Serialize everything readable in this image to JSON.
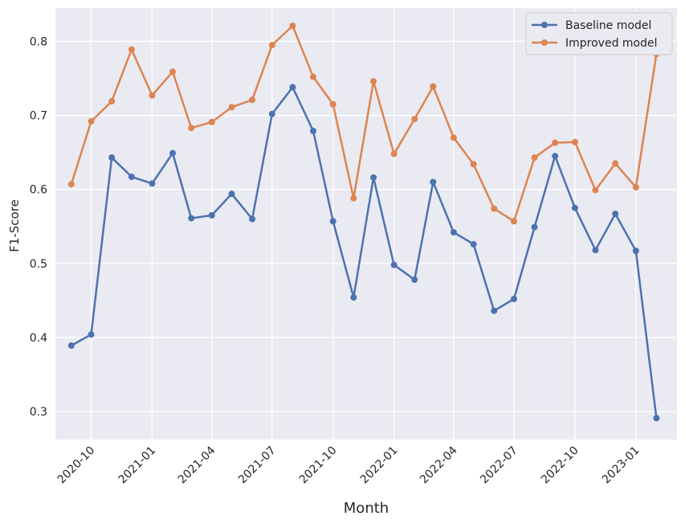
{
  "chart_data": {
    "type": "line",
    "xlabel": "Month",
    "ylabel": "F1-Score",
    "xlim": [
      "2020-08-08",
      "2023-03-04"
    ],
    "ylim": [
      0.262,
      0.845
    ],
    "x_ticks": [
      "2020-10",
      "2021-01",
      "2021-04",
      "2021-07",
      "2021-10",
      "2022-01",
      "2022-04",
      "2022-07",
      "2022-10",
      "2023-01"
    ],
    "y_ticks": [
      0.3,
      0.4,
      0.5,
      0.6,
      0.7,
      0.8
    ],
    "grid": true,
    "legend_position": "top-right",
    "x": [
      "2020-09",
      "2020-10",
      "2020-11",
      "2020-12",
      "2021-01",
      "2021-02",
      "2021-03",
      "2021-04",
      "2021-05",
      "2021-06",
      "2021-07",
      "2021-08",
      "2021-09",
      "2021-10",
      "2021-11",
      "2021-12",
      "2022-01",
      "2022-02",
      "2022-03",
      "2022-04",
      "2022-05",
      "2022-06",
      "2022-07",
      "2022-08",
      "2022-09",
      "2022-10",
      "2022-11",
      "2022-12",
      "2023-01",
      "2023-02"
    ],
    "series": [
      {
        "name": "Baseline model",
        "color": "#4c72b0",
        "values": [
          0.389,
          0.404,
          0.643,
          0.617,
          0.608,
          0.649,
          0.561,
          0.565,
          0.594,
          0.56,
          0.702,
          0.738,
          0.679,
          0.557,
          0.454,
          0.616,
          0.498,
          0.478,
          0.61,
          0.542,
          0.526,
          0.436,
          0.452,
          0.549,
          0.645,
          0.575,
          0.518,
          0.567,
          0.517,
          0.291
        ]
      },
      {
        "name": "Improved model",
        "color": "#dd8452",
        "values": [
          0.607,
          0.692,
          0.719,
          0.789,
          0.727,
          0.759,
          0.683,
          0.691,
          0.711,
          0.721,
          0.795,
          0.821,
          0.752,
          0.715,
          0.588,
          0.746,
          0.648,
          0.695,
          0.739,
          0.67,
          0.634,
          0.574,
          0.557,
          0.643,
          0.663,
          0.664,
          0.599,
          0.635,
          0.603,
          0.783
        ]
      }
    ]
  }
}
